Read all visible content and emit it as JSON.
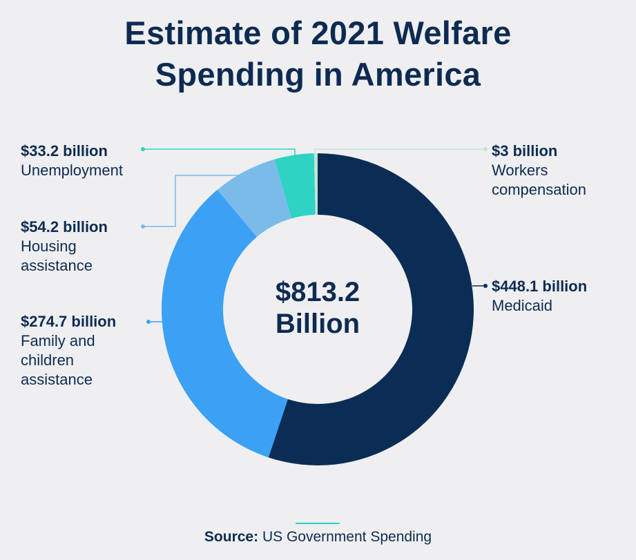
{
  "title": [
    "Estimate of 2021 Welfare",
    "Spending in America"
  ],
  "center": [
    "$813.2",
    "Billion"
  ],
  "source": {
    "prefix": "Source:",
    "text": "US Government Spending"
  },
  "colors": {
    "Medicaid": "#0b2d55",
    "Family and children assistance": "#3ba1f5",
    "Housing assistance": "#7abbea",
    "Unemployment": "#2ed3c3",
    "Workers compensation": "#bfe3d8",
    "background": "#efeff1"
  },
  "chart_data": {
    "type": "pie",
    "total_label": "$813.2 Billion",
    "series": [
      {
        "name": "Medicaid",
        "value": 448.1,
        "label": "$448.1 billion"
      },
      {
        "name": "Family and children assistance",
        "value": 274.7,
        "label": "$274.7 billion"
      },
      {
        "name": "Housing assistance",
        "value": 54.2,
        "label": "$54.2 billion"
      },
      {
        "name": "Unemployment",
        "value": 33.2,
        "label": "$33.2 billion"
      },
      {
        "name": "Workers compensation",
        "value": 3,
        "label": "$3 billion"
      }
    ]
  },
  "labels": {
    "unemployment": {
      "value": "$33.2 billion",
      "name": "Unemployment"
    },
    "housing": {
      "value": "$54.2 billion",
      "name": "Housing\nassistance"
    },
    "family": {
      "value": "$274.7 billion",
      "name": "Family and\nchildren\nassistance"
    },
    "workers": {
      "value": "$3 billion",
      "name": "Workers\ncompensation"
    },
    "medicaid": {
      "value": "$448.1 billion",
      "name": "Medicaid"
    }
  }
}
